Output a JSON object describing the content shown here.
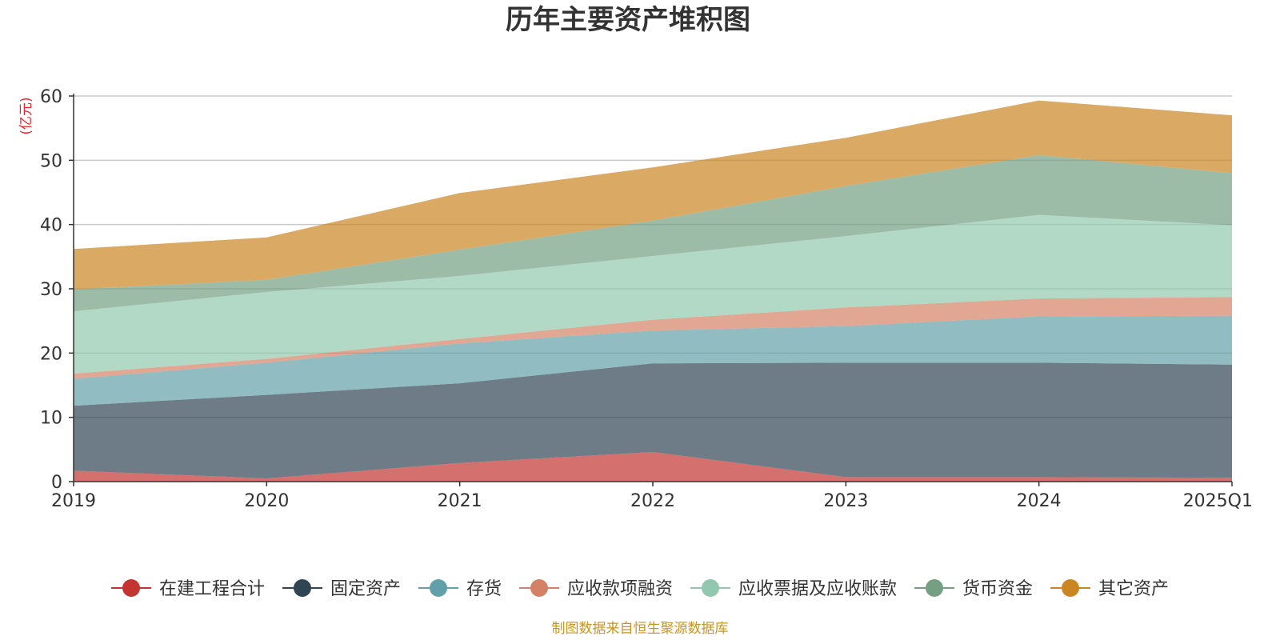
{
  "colors": {
    "source_text": "#c8961e",
    "unit_text": "#e8262b",
    "axis": "#333333",
    "grid": "#c8c8c8"
  },
  "chart_data": {
    "type": "area",
    "stacked": true,
    "title": "历年主要资产堆积图",
    "ylabel": "(亿元)",
    "xlabel": "",
    "ylim": [
      0,
      60
    ],
    "yticks": [
      "0",
      "10",
      "20",
      "30",
      "40",
      "50",
      "60"
    ],
    "categories": [
      "2019",
      "2020",
      "2021",
      "2022",
      "2023",
      "2024",
      "2025Q1"
    ],
    "grid": true,
    "legend_position": "bottom",
    "series": [
      {
        "name": "在建工程合计",
        "color": "#c23531",
        "values": [
          1.7,
          0.5,
          2.9,
          4.6,
          0.7,
          0.7,
          0.6
        ]
      },
      {
        "name": "固定资产",
        "color": "#2f4554",
        "values": [
          10.1,
          13.0,
          12.4,
          13.8,
          17.8,
          17.8,
          17.6
        ]
      },
      {
        "name": "存货",
        "color": "#61a0a8",
        "values": [
          4.2,
          5.0,
          6.2,
          5.1,
          5.7,
          7.2,
          7.6
        ]
      },
      {
        "name": "应收款项融资",
        "color": "#d48265",
        "values": [
          0.8,
          0.6,
          0.7,
          1.7,
          2.9,
          2.8,
          2.9
        ]
      },
      {
        "name": "应收票据及应收账款",
        "color": "#91c7ae",
        "values": [
          9.7,
          10.4,
          9.8,
          9.9,
          11.1,
          13.0,
          11.2
        ]
      },
      {
        "name": "货币资金",
        "color": "#749f83",
        "values": [
          3.4,
          1.9,
          4.1,
          5.5,
          7.8,
          9.3,
          8.1
        ]
      },
      {
        "name": "其它资产",
        "color": "#ca8622",
        "values": [
          6.3,
          6.6,
          8.8,
          8.3,
          7.5,
          8.5,
          9.0
        ]
      }
    ]
  },
  "footer": {
    "source": "制图数据来自恒生聚源数据库"
  }
}
